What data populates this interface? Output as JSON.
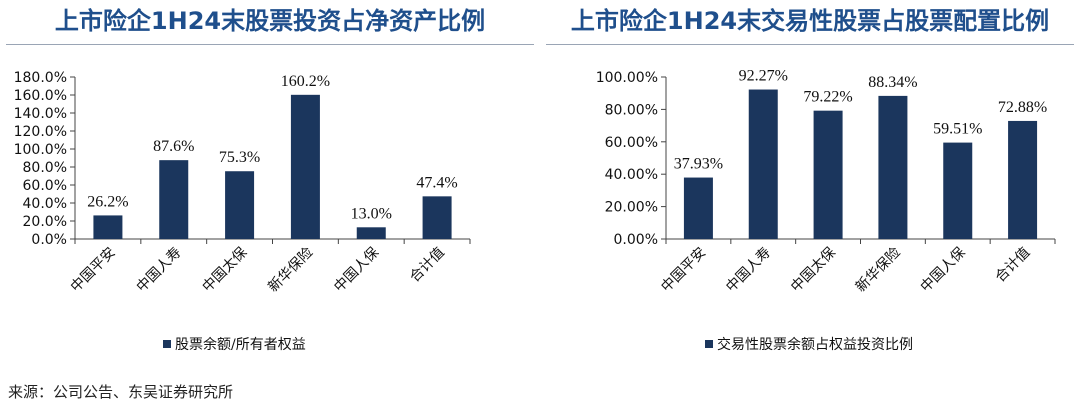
{
  "source": "来源：公司公告、东吴证券研究所",
  "colors": {
    "bar": "#1b365d",
    "title": "#1f4f8c",
    "axis": "#444444"
  },
  "chart_data": [
    {
      "type": "bar",
      "title": "上市险企1H24末股票投资占净资产比例",
      "categories": [
        "中国平安",
        "中国人寿",
        "中国太保",
        "新华保险",
        "中国人保",
        "合计值"
      ],
      "series": [
        {
          "name": "股票余额/所有者权益",
          "values": [
            26.2,
            87.6,
            75.3,
            160.2,
            13.0,
            47.4
          ],
          "value_labels": [
            "26.2%",
            "87.6%",
            "75.3%",
            "160.2%",
            "13.0%",
            "47.4%"
          ]
        }
      ],
      "ylim": [
        0,
        180
      ],
      "yticks": [
        0,
        20,
        40,
        60,
        80,
        100,
        120,
        140,
        160,
        180
      ],
      "ytick_labels": [
        "0.0%",
        "20.0%",
        "40.0%",
        "60.0%",
        "80.0%",
        "100.0%",
        "120.0%",
        "140.0%",
        "160.0%",
        "180.0%"
      ],
      "xlabel": "",
      "ylabel": "",
      "legend_position": "bottom",
      "grid": false
    },
    {
      "type": "bar",
      "title": "上市险企1H24末交易性股票占股票配置比例",
      "categories": [
        "中国平安",
        "中国人寿",
        "中国太保",
        "新华保险",
        "中国人保",
        "合计值"
      ],
      "series": [
        {
          "name": "交易性股票余额占权益投资比例",
          "values": [
            37.93,
            92.27,
            79.22,
            88.34,
            59.51,
            72.88
          ],
          "value_labels": [
            "37.93%",
            "92.27%",
            "79.22%",
            "88.34%",
            "59.51%",
            "72.88%"
          ]
        }
      ],
      "ylim": [
        0,
        100
      ],
      "yticks": [
        0,
        20,
        40,
        60,
        80,
        100
      ],
      "ytick_labels": [
        "0.00%",
        "20.00%",
        "40.00%",
        "60.00%",
        "80.00%",
        "100.00%"
      ],
      "xlabel": "",
      "ylabel": "",
      "legend_position": "bottom",
      "grid": false
    }
  ]
}
